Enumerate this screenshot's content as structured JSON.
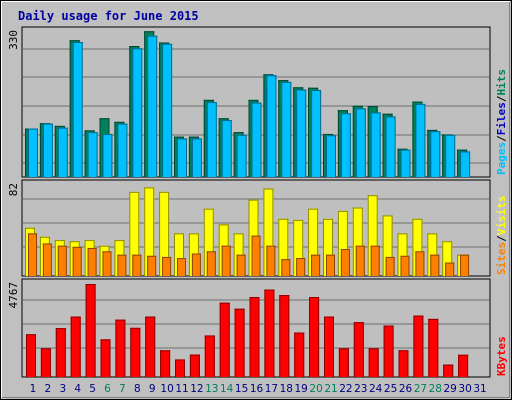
{
  "title": "Daily usage for June 2015",
  "colors": {
    "background": "#c0c0c0",
    "panel": "#bfbfbf",
    "grid": "#6f6f6f",
    "hits": "#00805c",
    "files": "#0000c0",
    "pages": "#00c0ff",
    "visits": "#ffff00",
    "sites": "#ff8000",
    "kbytes": "#ff0000",
    "title_text": "#0000a0",
    "weekend_day": "#00805c",
    "weekday_day": "#000080"
  },
  "chart_data": [
    {
      "type": "bar",
      "panel": "hits-files-pages",
      "y_axis_max_label": "330",
      "ylim": [
        0,
        330
      ],
      "legend": [
        {
          "label": "Pages",
          "color": "#00c0ff"
        },
        {
          "label": "/",
          "color": "#000000"
        },
        {
          "label": "Files",
          "color": "#0000c0"
        },
        {
          "label": "/",
          "color": "#000000"
        },
        {
          "label": "Hits",
          "color": "#00805c"
        }
      ],
      "categories": [
        "1",
        "2",
        "3",
        "4",
        "5",
        "6",
        "7",
        "8",
        "9",
        "10",
        "11",
        "12",
        "13",
        "14",
        "15",
        "16",
        "17",
        "18",
        "19",
        "20",
        "21",
        "22",
        "23",
        "24",
        "25",
        "26",
        "27",
        "28",
        "29",
        "30",
        "31"
      ],
      "series": [
        {
          "name": "Hits",
          "values": [
            108,
            120,
            114,
            305,
            104,
            131,
            123,
            292,
            325,
            300,
            90,
            90,
            172,
            131,
            100,
            172,
            229,
            216,
            200,
            199,
            96,
            149,
            159,
            158,
            141,
            63,
            168,
            105,
            95,
            61,
            0
          ]
        },
        {
          "name": "Files",
          "values": [
            78,
            92,
            84,
            281,
            74,
            0,
            69,
            172,
            202,
            158,
            59,
            59,
            145,
            100,
            69,
            145,
            200,
            165,
            174,
            112,
            74,
            119,
            129,
            129,
            107,
            0,
            143,
            75,
            0,
            0,
            0
          ]
        },
        {
          "name": "Pages",
          "values": [
            108,
            119,
            110,
            301,
            100,
            96,
            119,
            287,
            315,
            297,
            86,
            86,
            167,
            127,
            94,
            166,
            227,
            212,
            195,
            194,
            93,
            142,
            153,
            144,
            135,
            61,
            163,
            102,
            94,
            57,
            0
          ]
        }
      ]
    },
    {
      "type": "bar",
      "panel": "visits-sites",
      "y_axis_max_label": "82",
      "ylim": [
        0,
        82
      ],
      "legend": [
        {
          "label": "Sites",
          "color": "#ff8000"
        },
        {
          "label": "/",
          "color": "#000000"
        },
        {
          "label": "Visits",
          "color": "#ffff00"
        }
      ],
      "categories": [
        "1",
        "2",
        "3",
        "4",
        "5",
        "6",
        "7",
        "8",
        "9",
        "10",
        "11",
        "12",
        "13",
        "14",
        "15",
        "16",
        "17",
        "18",
        "19",
        "20",
        "21",
        "22",
        "23",
        "24",
        "25",
        "26",
        "27",
        "28",
        "29",
        "30",
        "31"
      ],
      "series": [
        {
          "name": "Visits",
          "values": [
            43,
            35,
            32,
            31,
            32,
            27,
            32,
            75,
            79,
            75,
            38,
            38,
            60,
            46,
            38,
            68,
            78,
            51,
            50,
            60,
            51,
            58,
            61,
            72,
            54,
            38,
            51,
            38,
            31,
            19,
            0
          ]
        },
        {
          "name": "Sites",
          "values": [
            38,
            29,
            27,
            26,
            25,
            22,
            19,
            19,
            18,
            17,
            16,
            20,
            22,
            27,
            19,
            36,
            27,
            15,
            16,
            19,
            19,
            24,
            27,
            27,
            17,
            18,
            22,
            19,
            12,
            19,
            0
          ]
        }
      ]
    },
    {
      "type": "bar",
      "panel": "kbytes",
      "y_axis_max_label": "4767",
      "ylim": [
        0,
        4767
      ],
      "legend": [
        {
          "label": "KBytes",
          "color": "#ff0000"
        }
      ],
      "categories": [
        "1",
        "2",
        "3",
        "4",
        "5",
        "6",
        "7",
        "8",
        "9",
        "10",
        "11",
        "12",
        "13",
        "14",
        "15",
        "16",
        "17",
        "18",
        "19",
        "20",
        "21",
        "22",
        "23",
        "24",
        "25",
        "26",
        "27",
        "28",
        "29",
        "30",
        "31"
      ],
      "series": [
        {
          "name": "KBytes",
          "values": [
            2190,
            1470,
            2510,
            3100,
            4767,
            1930,
            2940,
            2520,
            3100,
            1370,
            900,
            1150,
            2130,
            3810,
            3500,
            4100,
            4480,
            4200,
            2280,
            4100,
            3100,
            1470,
            2810,
            1470,
            2640,
            1370,
            3150,
            2980,
            640,
            1140,
            0
          ]
        }
      ]
    }
  ],
  "x_axis": {
    "day_labels": [
      "1",
      "2",
      "3",
      "4",
      "5",
      "6",
      "7",
      "8",
      "9",
      "10",
      "11",
      "12",
      "13",
      "14",
      "15",
      "16",
      "17",
      "18",
      "19",
      "20",
      "21",
      "22",
      "23",
      "24",
      "25",
      "26",
      "27",
      "28",
      "29",
      "30",
      "31"
    ],
    "weekend_days": [
      "6",
      "7",
      "13",
      "14",
      "20",
      "21",
      "27",
      "28"
    ]
  }
}
